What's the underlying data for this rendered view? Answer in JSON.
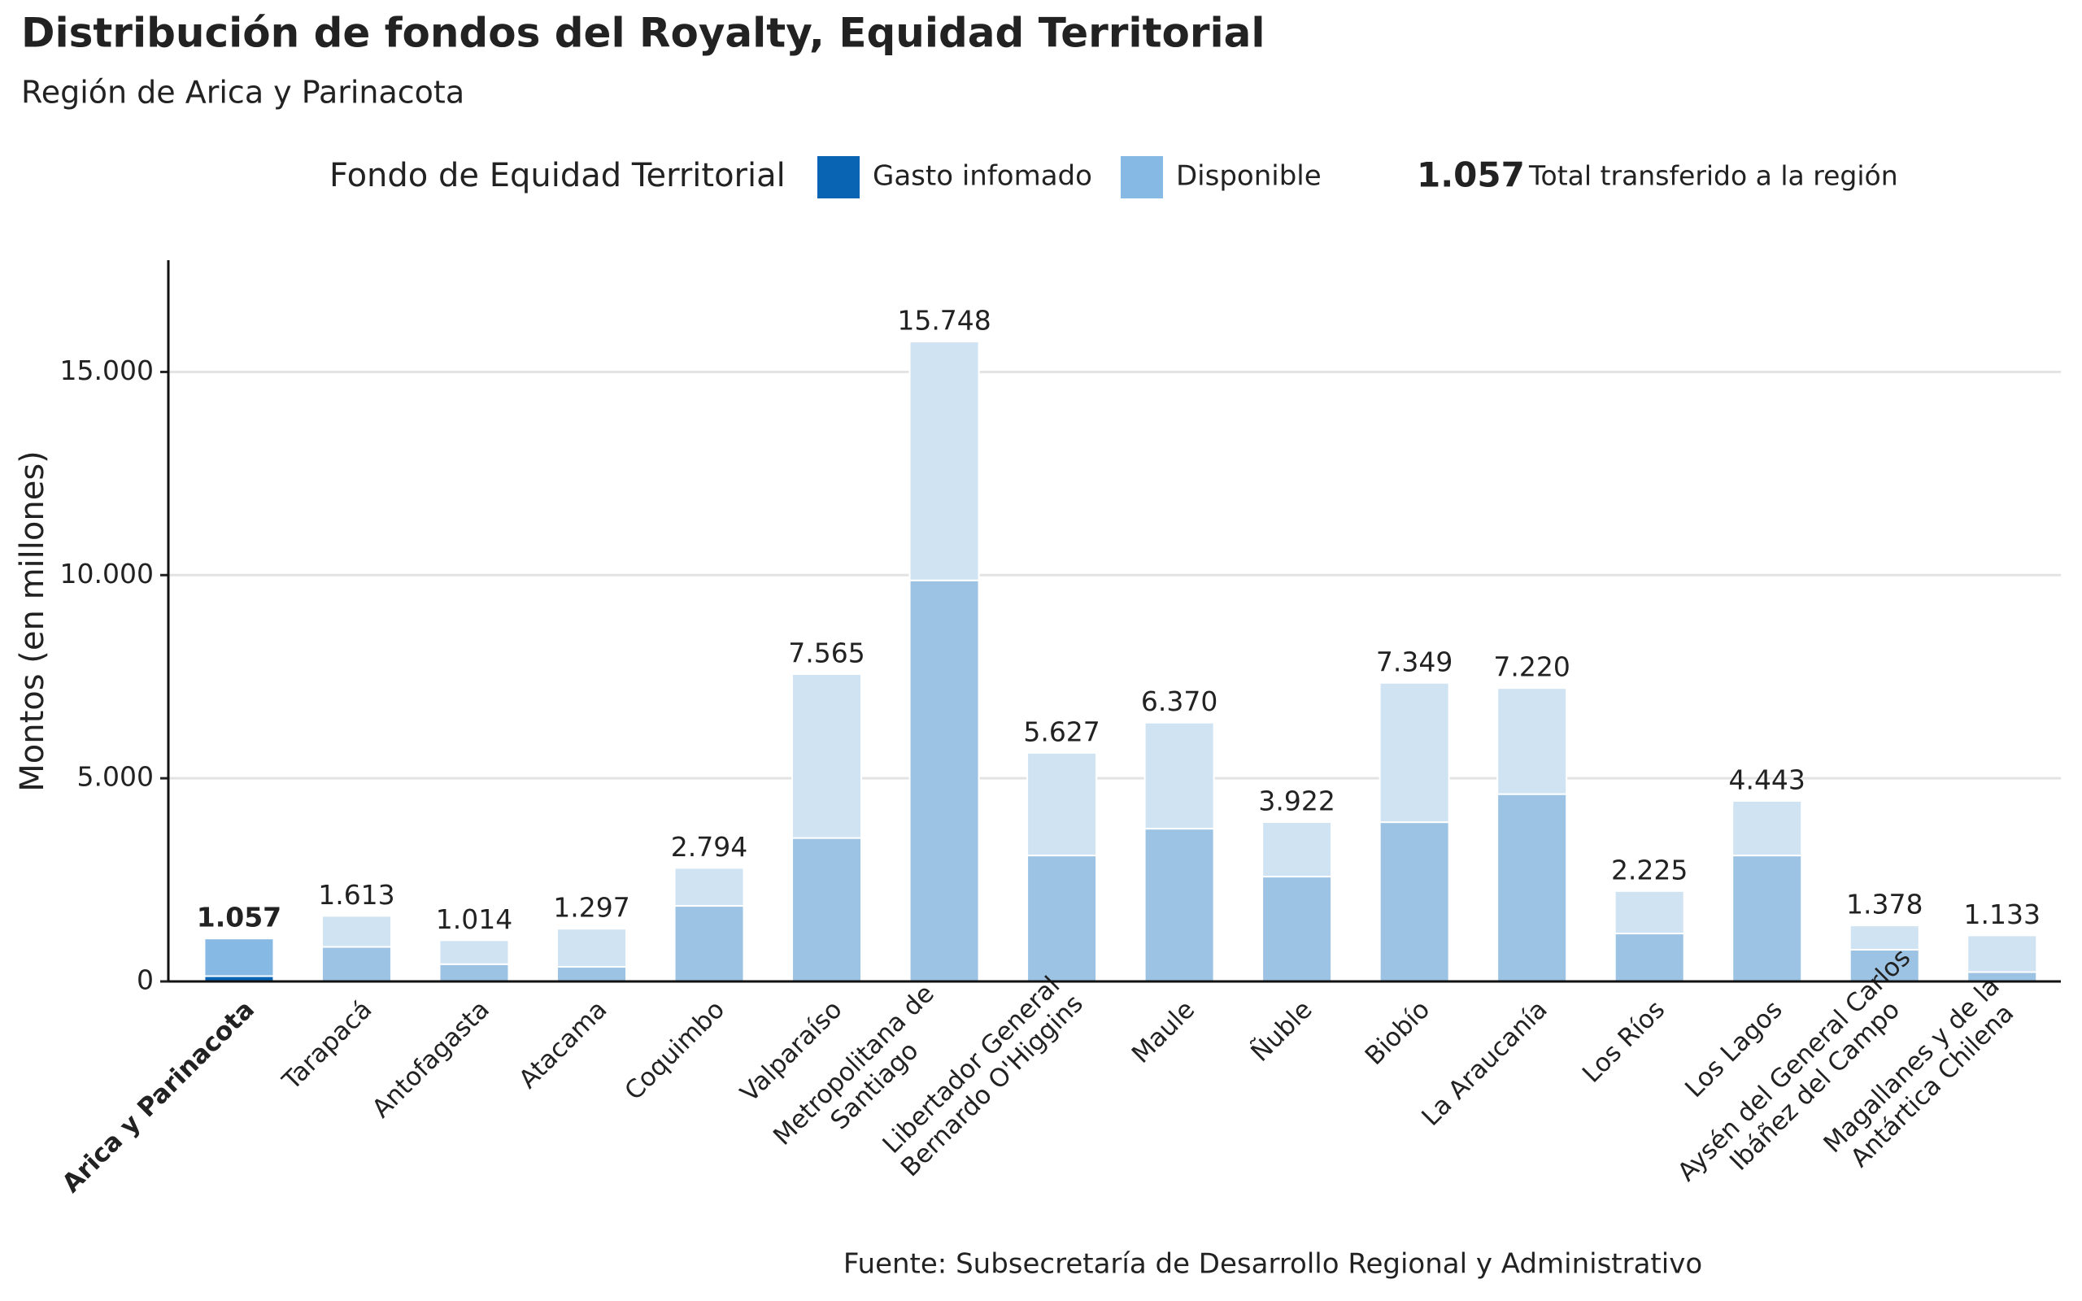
{
  "chart_data": {
    "type": "stacked_bar",
    "title": "Distribución de fondos del Royalty, Equidad Territorial",
    "subtitle": "Región de Arica y Parinacota",
    "y_label": "Montos (en millones)",
    "source": "Fuente: Subsecretaría de Desarrollo Regional y Administrativo",
    "legend": {
      "title": "Fondo de Equidad Territorial",
      "total_label": "1.057",
      "total_text": "Total transferido a la región"
    },
    "highlight": 0,
    "categories": [
      [
        "Arica y Parinacota"
      ],
      [
        "Tarapacá"
      ],
      [
        "Antofagasta"
      ],
      [
        "Atacama"
      ],
      [
        "Coquimbo"
      ],
      [
        "Valparaíso"
      ],
      [
        "Metropolitana de",
        "Santiago"
      ],
      [
        "Libertador General",
        "Bernardo O'Higgins"
      ],
      [
        "Maule"
      ],
      [
        "Ñuble"
      ],
      [
        "Biobío"
      ],
      [
        "La Araucanía"
      ],
      [
        "Los Ríos"
      ],
      [
        "Los Lagos"
      ],
      [
        "Aysén del General Carlos",
        "Ibáñez del Campo"
      ],
      [
        "Magallanes y de la",
        "Antártica Chilena"
      ]
    ],
    "series": [
      {
        "name": "Gasto infomado",
        "color": "#0a64b4",
        "muted_color": "#9cc3e3",
        "values": [
          130,
          850,
          425,
          360,
          1860,
          3530,
          9870,
          3100,
          3760,
          2580,
          3920,
          4610,
          1180,
          3100,
          780,
          230
        ]
      },
      {
        "name": "Disponible",
        "color": "#86b9e3",
        "muted_color": "#d0e3f3",
        "values": [
          927,
          763,
          589,
          937,
          934,
          4035,
          5878,
          2527,
          2610,
          1342,
          3429,
          2610,
          1045,
          1343,
          598,
          903
        ]
      }
    ],
    "totals": [
      1057,
      1613,
      1014,
      1297,
      2794,
      7565,
      15748,
      5627,
      6370,
      3922,
      7349,
      7220,
      2225,
      4443,
      1378,
      1133
    ],
    "value_labels": [
      "1.057",
      "1.613",
      "1.014",
      "1.297",
      "2.794",
      "7.565",
      "15.748",
      "5.627",
      "6.370",
      "3.922",
      "7.349",
      "7.220",
      "2.225",
      "4.443",
      "1.378",
      "1.133"
    ],
    "ylim": [
      0,
      17750
    ],
    "yticks": [
      0,
      {
        "value": 5000,
        "label": "5.000"
      },
      {
        "value": 10000,
        "label": "10.000"
      },
      {
        "value": 15000,
        "label": "15.000"
      }
    ],
    "grid": true
  }
}
